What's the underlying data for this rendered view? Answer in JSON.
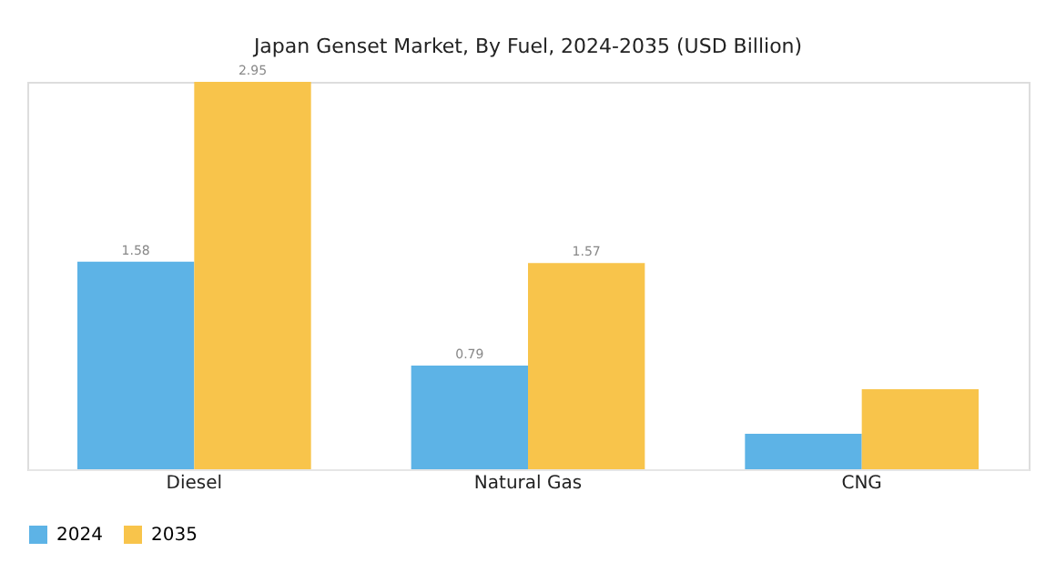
{
  "chart_data": {
    "type": "bar",
    "title": "Japan Genset Market, By Fuel, 2024-2035 (USD Billion)",
    "categories": [
      "Diesel",
      "Natural Gas",
      "CNG"
    ],
    "series": [
      {
        "name": "2024",
        "color": "#5db3e6",
        "values": [
          1.58,
          0.79,
          0.27
        ],
        "value_labels": [
          "1.58",
          "0.79",
          null
        ]
      },
      {
        "name": "2035",
        "color": "#f8c44b",
        "values": [
          2.95,
          1.57,
          0.61
        ],
        "value_labels": [
          "2.95",
          "1.57",
          null
        ]
      }
    ],
    "legend": "bottom",
    "grid": false
  }
}
